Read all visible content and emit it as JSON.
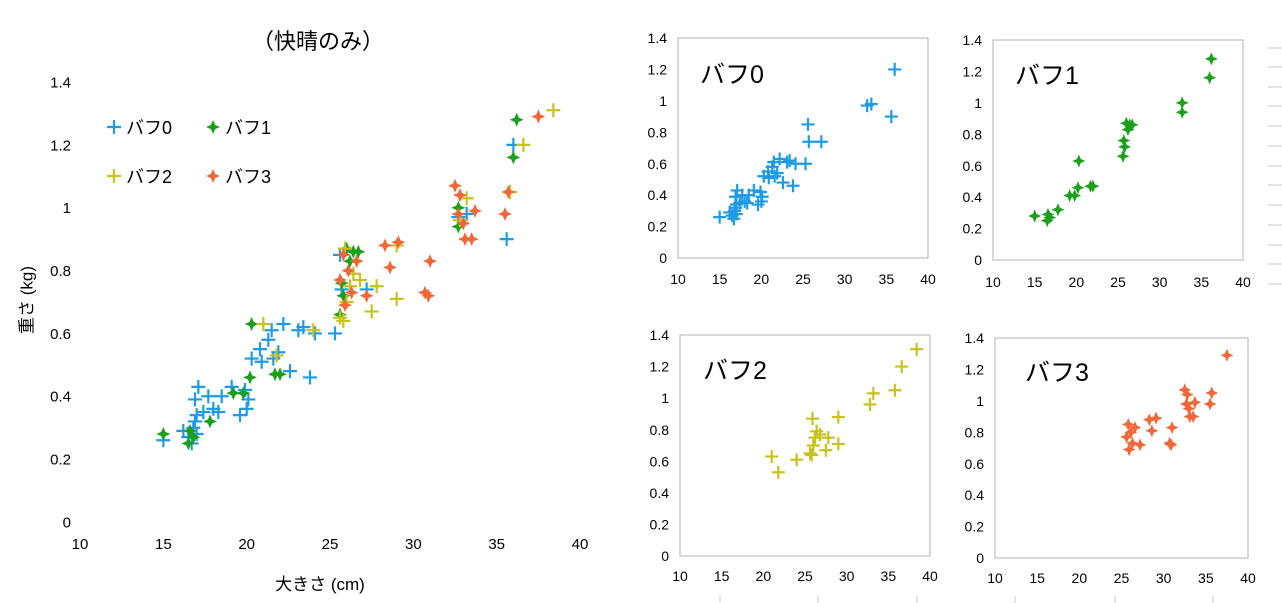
{
  "chart_data": [
    {
      "type": "scatter",
      "title": "（快晴のみ）",
      "xlabel": "大きさ (cm)",
      "ylabel": "重さ (kg)",
      "xlim": [
        10,
        40
      ],
      "ylim": [
        0,
        1.4
      ],
      "x_ticks": [
        10,
        15,
        20,
        25,
        30,
        35,
        40
      ],
      "y_ticks": [
        "0",
        "0.2",
        "0.4",
        "0.6",
        "0.8",
        "1",
        "1.2",
        "1.4"
      ],
      "grid": false,
      "legend": "top-left",
      "series": [
        {
          "name": "バフ0",
          "color": "#1f9be3",
          "marker": "plus",
          "points": [
            [
              15.0,
              0.26
            ],
            [
              16.2,
              0.29
            ],
            [
              16.5,
              0.27
            ],
            [
              16.7,
              0.25
            ],
            [
              16.8,
              0.3
            ],
            [
              16.9,
              0.32
            ],
            [
              17.0,
              0.28
            ],
            [
              16.9,
              0.39
            ],
            [
              17.1,
              0.43
            ],
            [
              17.0,
              0.34
            ],
            [
              17.4,
              0.35
            ],
            [
              17.7,
              0.4
            ],
            [
              18.0,
              0.36
            ],
            [
              18.3,
              0.35
            ],
            [
              18.5,
              0.4
            ],
            [
              19.1,
              0.43
            ],
            [
              19.6,
              0.34
            ],
            [
              19.9,
              0.42
            ],
            [
              20.0,
              0.36
            ],
            [
              20.1,
              0.39
            ],
            [
              20.3,
              0.52
            ],
            [
              20.8,
              0.55
            ],
            [
              20.9,
              0.51
            ],
            [
              21.3,
              0.58
            ],
            [
              21.5,
              0.61
            ],
            [
              21.6,
              0.52
            ],
            [
              21.9,
              0.54
            ],
            [
              22.2,
              0.63
            ],
            [
              22.6,
              0.48
            ],
            [
              23.1,
              0.61
            ],
            [
              23.4,
              0.62
            ],
            [
              23.8,
              0.46
            ],
            [
              24.1,
              0.6
            ],
            [
              25.3,
              0.6
            ],
            [
              25.6,
              0.85
            ],
            [
              25.7,
              0.74
            ],
            [
              27.2,
              0.74
            ],
            [
              32.7,
              0.97
            ],
            [
              33.2,
              0.98
            ],
            [
              35.6,
              0.9
            ],
            [
              36.0,
              1.2
            ]
          ]
        },
        {
          "name": "バフ1",
          "color": "#1c9f1c",
          "marker": "star",
          "points": [
            [
              15.0,
              0.28
            ],
            [
              16.5,
              0.25
            ],
            [
              16.6,
              0.29
            ],
            [
              16.8,
              0.27
            ],
            [
              17.8,
              0.32
            ],
            [
              19.2,
              0.41
            ],
            [
              19.8,
              0.41
            ],
            [
              20.2,
              0.46
            ],
            [
              20.3,
              0.63
            ],
            [
              21.7,
              0.47
            ],
            [
              22.0,
              0.47
            ],
            [
              25.6,
              0.66
            ],
            [
              25.7,
              0.76
            ],
            [
              25.8,
              0.72
            ],
            [
              26.0,
              0.87
            ],
            [
              26.2,
              0.83
            ],
            [
              26.4,
              0.86
            ],
            [
              26.7,
              0.86
            ],
            [
              32.7,
              0.94
            ],
            [
              32.7,
              1.0
            ],
            [
              36.0,
              1.16
            ],
            [
              36.2,
              1.28
            ]
          ]
        },
        {
          "name": "バフ2",
          "color": "#c6c21e",
          "marker": "plus",
          "points": [
            [
              21.0,
              0.63
            ],
            [
              21.8,
              0.53
            ],
            [
              24.0,
              0.61
            ],
            [
              25.6,
              0.65
            ],
            [
              25.9,
              0.87
            ],
            [
              26.0,
              0.7
            ],
            [
              26.2,
              0.75
            ],
            [
              26.4,
              0.79
            ],
            [
              26.8,
              0.77
            ],
            [
              25.8,
              0.64
            ],
            [
              27.5,
              0.67
            ],
            [
              27.8,
              0.75
            ],
            [
              29.0,
              0.71
            ],
            [
              29.0,
              0.88
            ],
            [
              32.8,
              0.96
            ],
            [
              33.2,
              1.03
            ],
            [
              35.8,
              1.05
            ],
            [
              36.6,
              1.2
            ],
            [
              38.4,
              1.31
            ]
          ]
        },
        {
          "name": "バフ3",
          "color": "#f0683a",
          "marker": "star",
          "points": [
            [
              25.6,
              0.77
            ],
            [
              25.8,
              0.85
            ],
            [
              25.9,
              0.69
            ],
            [
              26.1,
              0.8
            ],
            [
              26.3,
              0.73
            ],
            [
              26.6,
              0.83
            ],
            [
              27.2,
              0.72
            ],
            [
              28.3,
              0.88
            ],
            [
              28.6,
              0.81
            ],
            [
              29.1,
              0.89
            ],
            [
              30.7,
              0.73
            ],
            [
              30.9,
              0.72
            ],
            [
              31.0,
              0.83
            ],
            [
              32.5,
              1.07
            ],
            [
              32.8,
              1.04
            ],
            [
              32.7,
              0.98
            ],
            [
              33.0,
              0.95
            ],
            [
              33.1,
              0.9
            ],
            [
              33.5,
              0.9
            ],
            [
              33.7,
              0.99
            ],
            [
              35.5,
              0.98
            ],
            [
              35.7,
              1.05
            ],
            [
              37.5,
              1.29
            ]
          ]
        }
      ]
    },
    {
      "type": "scatter",
      "xlim": [
        10,
        40
      ],
      "ylim": [
        0,
        1.4
      ],
      "x_ticks": [
        10,
        15,
        20,
        25,
        30,
        35,
        40
      ],
      "y_ticks": [
        "0",
        "0.2",
        "0.4",
        "0.6",
        "0.8",
        "1",
        "1.2",
        "1.4"
      ],
      "grid": false,
      "series": [
        {
          "name": "バフ0",
          "color": "#1f9be3",
          "marker": "plus",
          "points": [
            [
              15.0,
              0.26
            ],
            [
              16.2,
              0.29
            ],
            [
              16.5,
              0.27
            ],
            [
              16.7,
              0.25
            ],
            [
              16.8,
              0.3
            ],
            [
              16.9,
              0.32
            ],
            [
              17.0,
              0.28
            ],
            [
              16.9,
              0.39
            ],
            [
              17.1,
              0.43
            ],
            [
              17.0,
              0.34
            ],
            [
              17.4,
              0.35
            ],
            [
              17.7,
              0.4
            ],
            [
              18.0,
              0.36
            ],
            [
              18.3,
              0.35
            ],
            [
              18.5,
              0.4
            ],
            [
              19.1,
              0.43
            ],
            [
              19.6,
              0.34
            ],
            [
              19.9,
              0.42
            ],
            [
              20.0,
              0.36
            ],
            [
              20.1,
              0.39
            ],
            [
              20.3,
              0.52
            ],
            [
              20.8,
              0.55
            ],
            [
              20.9,
              0.51
            ],
            [
              21.3,
              0.58
            ],
            [
              21.5,
              0.61
            ],
            [
              21.6,
              0.52
            ],
            [
              21.9,
              0.54
            ],
            [
              22.2,
              0.63
            ],
            [
              22.6,
              0.48
            ],
            [
              23.1,
              0.61
            ],
            [
              23.4,
              0.62
            ],
            [
              23.8,
              0.46
            ],
            [
              24.1,
              0.6
            ],
            [
              25.3,
              0.6
            ],
            [
              25.6,
              0.85
            ],
            [
              25.7,
              0.74
            ],
            [
              27.2,
              0.74
            ],
            [
              32.7,
              0.97
            ],
            [
              33.2,
              0.98
            ],
            [
              35.6,
              0.9
            ],
            [
              36.0,
              1.2
            ]
          ]
        }
      ]
    },
    {
      "type": "scatter",
      "xlim": [
        10,
        40
      ],
      "ylim": [
        0,
        1.4
      ],
      "x_ticks": [
        10,
        15,
        20,
        25,
        30,
        35,
        40
      ],
      "y_ticks": [
        "0",
        "0.2",
        "0.4",
        "0.6",
        "0.8",
        "1",
        "1.2",
        "1.4"
      ],
      "grid": false,
      "series": [
        {
          "name": "バフ1",
          "color": "#1c9f1c",
          "marker": "star",
          "points": [
            [
              15.0,
              0.28
            ],
            [
              16.5,
              0.25
            ],
            [
              16.6,
              0.29
            ],
            [
              16.8,
              0.27
            ],
            [
              17.8,
              0.32
            ],
            [
              19.2,
              0.41
            ],
            [
              19.8,
              0.41
            ],
            [
              20.2,
              0.46
            ],
            [
              20.3,
              0.63
            ],
            [
              21.7,
              0.47
            ],
            [
              22.0,
              0.47
            ],
            [
              25.6,
              0.66
            ],
            [
              25.7,
              0.76
            ],
            [
              25.8,
              0.72
            ],
            [
              26.0,
              0.87
            ],
            [
              26.2,
              0.83
            ],
            [
              26.4,
              0.86
            ],
            [
              26.7,
              0.86
            ],
            [
              32.7,
              0.94
            ],
            [
              32.7,
              1.0
            ],
            [
              36.0,
              1.16
            ],
            [
              36.2,
              1.28
            ]
          ]
        }
      ]
    },
    {
      "type": "scatter",
      "xlim": [
        10,
        40
      ],
      "ylim": [
        0,
        1.4
      ],
      "x_ticks": [
        10,
        15,
        20,
        25,
        30,
        35,
        40
      ],
      "y_ticks": [
        "0",
        "0.2",
        "0.4",
        "0.6",
        "0.8",
        "1",
        "1.2",
        "1.4"
      ],
      "grid": false,
      "series": [
        {
          "name": "バフ2",
          "color": "#c6c21e",
          "marker": "plus",
          "points": [
            [
              21.0,
              0.63
            ],
            [
              21.8,
              0.53
            ],
            [
              24.0,
              0.61
            ],
            [
              25.6,
              0.65
            ],
            [
              25.9,
              0.87
            ],
            [
              26.0,
              0.7
            ],
            [
              26.2,
              0.75
            ],
            [
              26.4,
              0.79
            ],
            [
              26.8,
              0.77
            ],
            [
              25.8,
              0.64
            ],
            [
              27.5,
              0.67
            ],
            [
              27.8,
              0.75
            ],
            [
              29.0,
              0.71
            ],
            [
              29.0,
              0.88
            ],
            [
              32.8,
              0.96
            ],
            [
              33.2,
              1.03
            ],
            [
              35.8,
              1.05
            ],
            [
              36.6,
              1.2
            ],
            [
              38.4,
              1.31
            ]
          ]
        }
      ]
    },
    {
      "type": "scatter",
      "xlim": [
        10,
        40
      ],
      "ylim": [
        0,
        1.4
      ],
      "x_ticks": [
        10,
        15,
        20,
        25,
        30,
        35,
        40
      ],
      "y_ticks": [
        "0",
        "0.2",
        "0.4",
        "0.6",
        "0.8",
        "1",
        "1.2",
        "1.4"
      ],
      "grid": false,
      "series": [
        {
          "name": "バフ3",
          "color": "#f0683a",
          "marker": "star",
          "points": [
            [
              25.6,
              0.77
            ],
            [
              25.8,
              0.85
            ],
            [
              25.9,
              0.69
            ],
            [
              26.1,
              0.8
            ],
            [
              26.3,
              0.73
            ],
            [
              26.6,
              0.83
            ],
            [
              27.2,
              0.72
            ],
            [
              28.3,
              0.88
            ],
            [
              28.6,
              0.81
            ],
            [
              29.1,
              0.89
            ],
            [
              30.7,
              0.73
            ],
            [
              30.9,
              0.72
            ],
            [
              31.0,
              0.83
            ],
            [
              32.5,
              1.07
            ],
            [
              32.8,
              1.04
            ],
            [
              32.7,
              0.98
            ],
            [
              33.0,
              0.95
            ],
            [
              33.1,
              0.9
            ],
            [
              33.5,
              0.9
            ],
            [
              33.7,
              0.99
            ],
            [
              35.5,
              0.98
            ],
            [
              35.7,
              1.05
            ],
            [
              37.5,
              1.29
            ]
          ]
        }
      ]
    }
  ]
}
